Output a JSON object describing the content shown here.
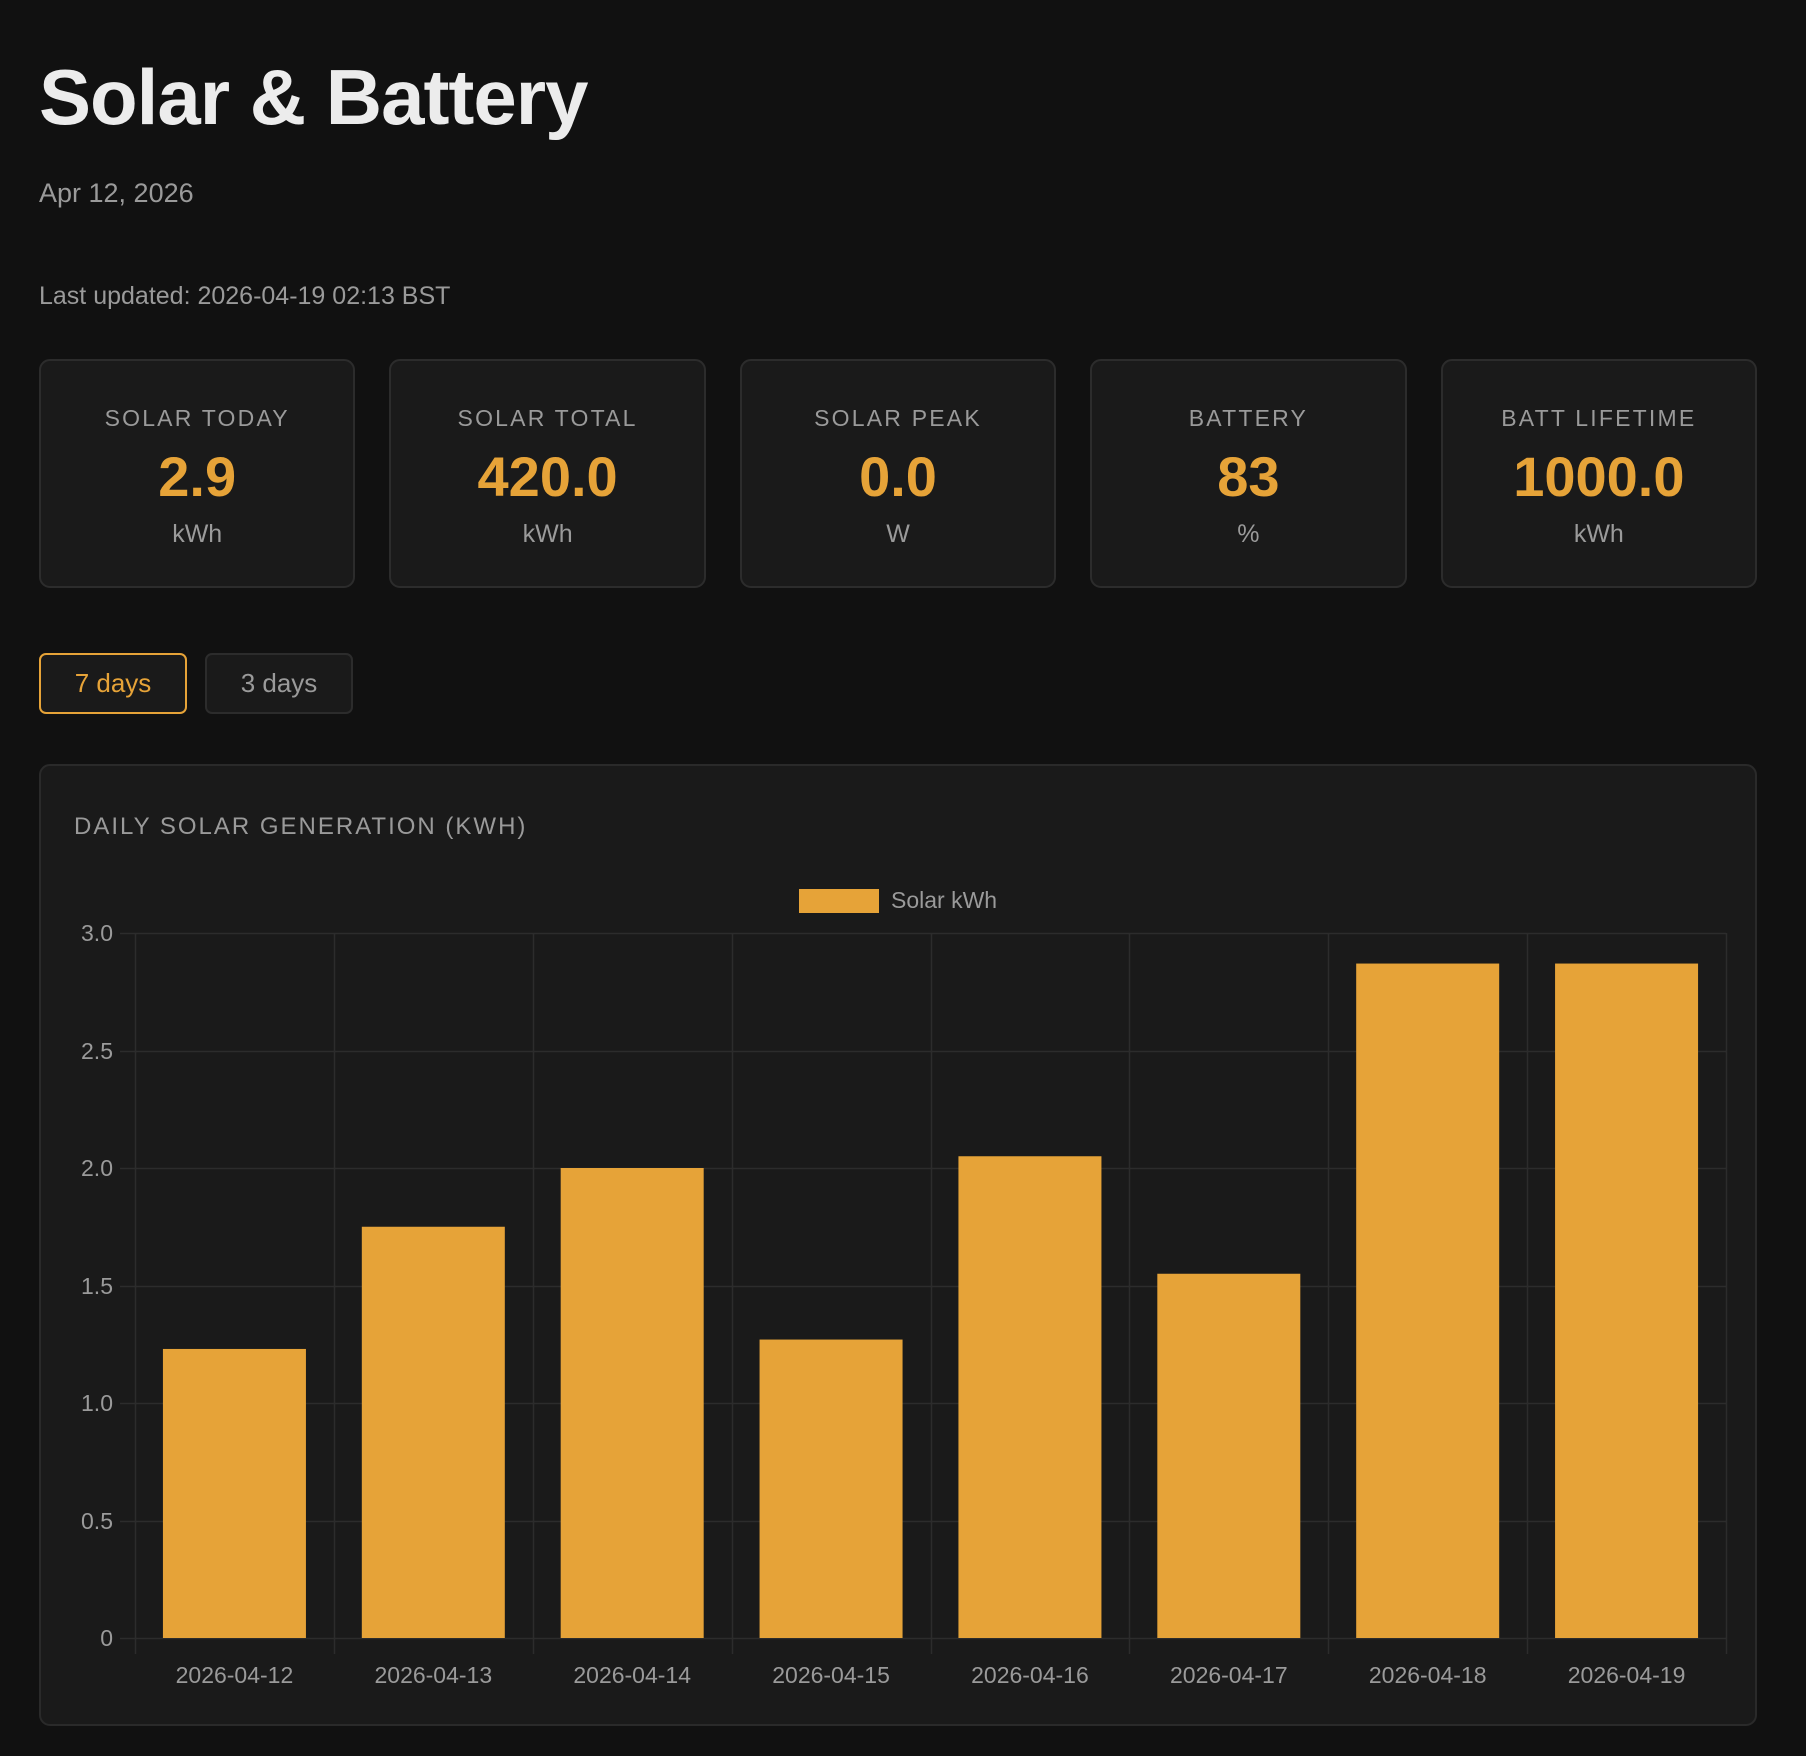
{
  "header": {
    "title": "Solar & Battery",
    "date": "Apr 12, 2026",
    "last_updated": "Last updated: 2026-04-19 02:13 BST"
  },
  "cards": [
    {
      "label": "SOLAR TODAY",
      "value": "2.9",
      "unit": "kWh"
    },
    {
      "label": "SOLAR TOTAL",
      "value": "420.0",
      "unit": "kWh"
    },
    {
      "label": "SOLAR PEAK",
      "value": "0.0",
      "unit": "W"
    },
    {
      "label": "BATTERY",
      "value": "83",
      "unit": "%"
    },
    {
      "label": "BATT LIFETIME",
      "value": "1000.0",
      "unit": "kWh"
    }
  ],
  "range_buttons": [
    {
      "label": "7 days",
      "active": true
    },
    {
      "label": "3 days",
      "active": false
    }
  ],
  "colors": {
    "accent": "#e6a338",
    "background": "#111111",
    "panel": "#1a1a1a",
    "grid": "#2c2c2c",
    "muted_text": "#9a9a9a"
  },
  "chart_panel": {
    "title": "DAILY SOLAR GENERATION (KWH)"
  },
  "chart_data": {
    "type": "bar",
    "title": "DAILY SOLAR GENERATION (KWH)",
    "categories": [
      "2026-04-12",
      "2026-04-13",
      "2026-04-14",
      "2026-04-15",
      "2026-04-16",
      "2026-04-17",
      "2026-04-18",
      "2026-04-19"
    ],
    "series": [
      {
        "name": "Solar kWh",
        "color": "#e6a338",
        "values": [
          1.23,
          1.75,
          2.0,
          1.27,
          2.05,
          1.55,
          2.87,
          2.87
        ]
      }
    ],
    "xlabel": "",
    "ylabel": "",
    "ylim": [
      0,
      3.0
    ],
    "yticks": [
      "0",
      "0.5",
      "1.0",
      "1.5",
      "2.0",
      "2.5",
      "3.0"
    ],
    "grid": true,
    "legend_position": "top-center"
  }
}
